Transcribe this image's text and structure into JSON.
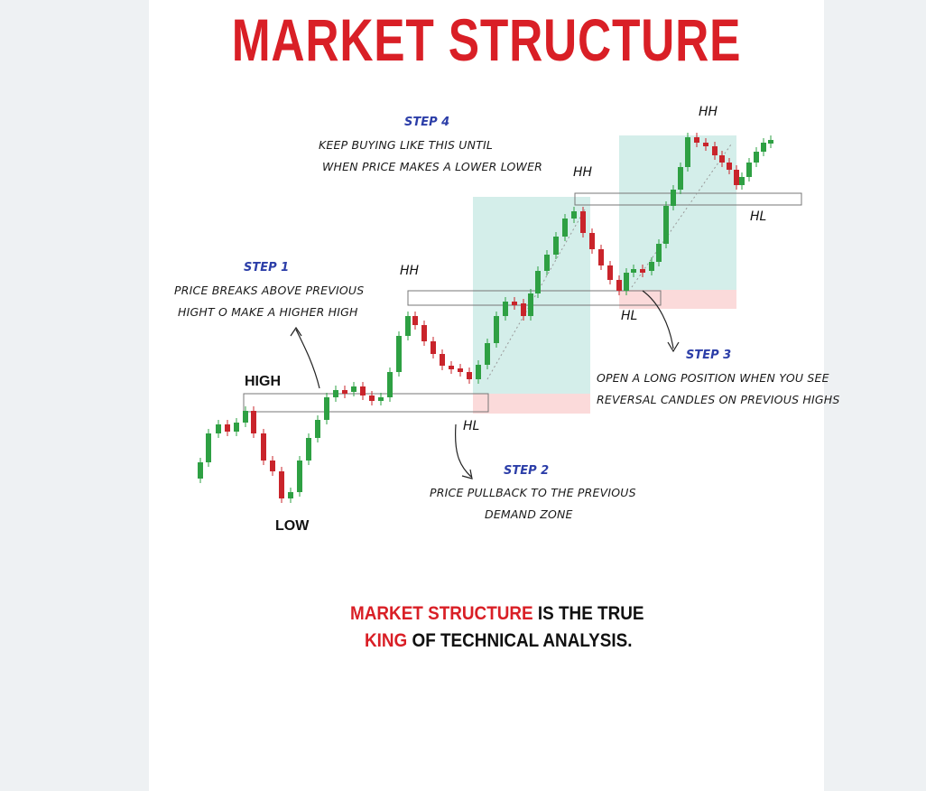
{
  "title": "MARKET STRUCTURE",
  "steps": {
    "step1": {
      "label": "STEP 1",
      "line1": "PRICE BREAKS ABOVE PREVIOUS",
      "line2": "HIGHT O MAKE A HIGHER HIGH"
    },
    "step2": {
      "label": "STEP 2",
      "line1": "PRICE PULLBACK TO THE PREVIOUS",
      "line2": "DEMAND ZONE"
    },
    "step3": {
      "label": "STEP 3",
      "line1": "OPEN A LONG POSITION WHEN YOU SEE",
      "line2": "REVERSAL CANDLES ON PREVIOUS HIGHS"
    },
    "step4": {
      "label": "STEP 4",
      "line1": "KEEP BUYING LIKE THIS UNTIL",
      "line2": "WHEN PRICE MAKES A LOWER LOWER"
    }
  },
  "labels": {
    "high": "HIGH",
    "low": "LOW",
    "hh1": "HH",
    "hh2": "HH",
    "hh3": "HH",
    "hl1": "HL",
    "hl2": "HL",
    "hl3": "HL"
  },
  "tagline": {
    "line1_red": "MARKET STRUCTURE",
    "line1_rest": " IS THE TRUE",
    "line2_red": "KING",
    "line2_rest": " OF TECHNICAL ANALYSIS."
  },
  "colors": {
    "title": "#d91f26",
    "bull_candle": "#2ea043",
    "bear_candle": "#c9242b",
    "step_label": "#2c3ea8",
    "buy_zone": "#cdebe6",
    "stop_zone": "#fbdada"
  }
}
